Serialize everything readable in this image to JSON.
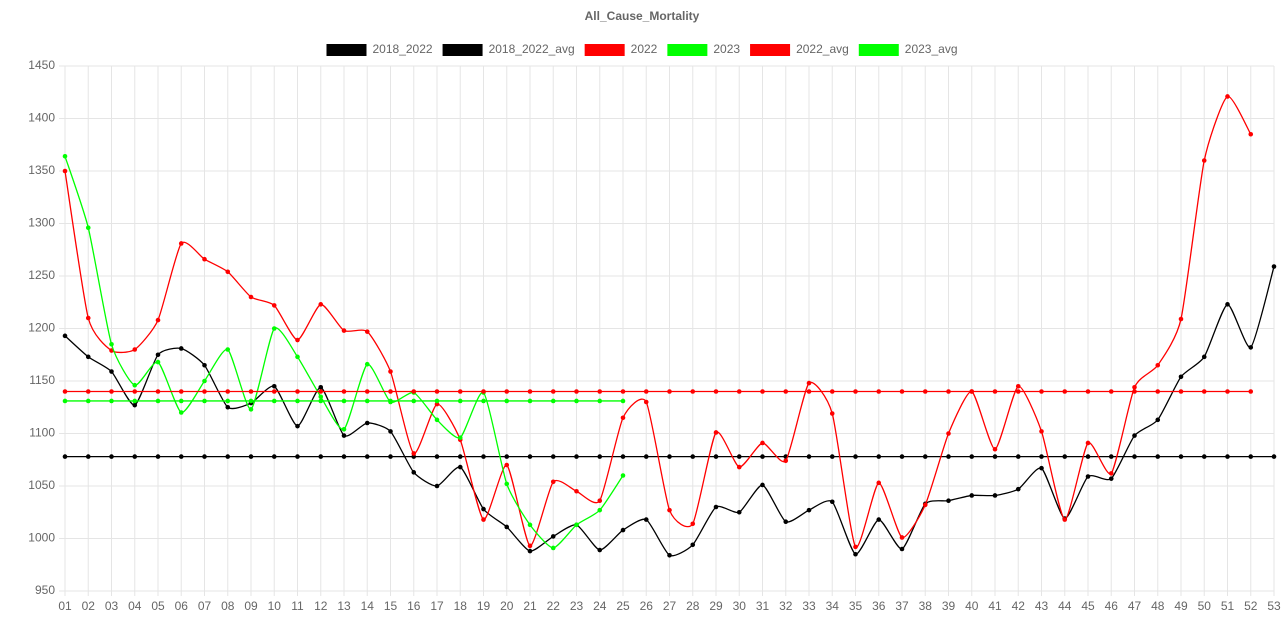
{
  "chart_data": {
    "type": "line",
    "title": "All_Cause_Mortality",
    "categories": [
      "01",
      "02",
      "03",
      "04",
      "05",
      "06",
      "07",
      "08",
      "09",
      "10",
      "11",
      "12",
      "13",
      "14",
      "15",
      "16",
      "17",
      "18",
      "19",
      "20",
      "21",
      "22",
      "23",
      "24",
      "25",
      "26",
      "27",
      "28",
      "29",
      "30",
      "31",
      "32",
      "33",
      "34",
      "35",
      "36",
      "37",
      "38",
      "39",
      "40",
      "41",
      "42",
      "43",
      "44",
      "45",
      "46",
      "47",
      "48",
      "49",
      "50",
      "51",
      "52",
      "53"
    ],
    "ylim": [
      950,
      1450
    ],
    "yticks": [
      950,
      1000,
      1050,
      1100,
      1150,
      1200,
      1250,
      1300,
      1350,
      1400,
      1450
    ],
    "grid": true,
    "series": [
      {
        "name": "2018_2022",
        "color": "#000000",
        "values": [
          1193,
          1173,
          1159,
          1127,
          1175,
          1181,
          1165,
          1125,
          1129,
          1145,
          1107,
          1144,
          1098,
          1110,
          1102,
          1063,
          1050,
          1068,
          1028,
          1011,
          988,
          1002,
          1013,
          989,
          1008,
          1018,
          984,
          994,
          1030,
          1025,
          1051,
          1016,
          1027,
          1035,
          985,
          1018,
          990,
          1033,
          1036,
          1041,
          1041,
          1047,
          1067,
          1019,
          1059,
          1057,
          1098,
          1113,
          1154,
          1173,
          1223,
          1182,
          1259
        ]
      },
      {
        "name": "2018_2022_avg",
        "color": "#000000",
        "values": [
          1078,
          1078,
          1078,
          1078,
          1078,
          1078,
          1078,
          1078,
          1078,
          1078,
          1078,
          1078,
          1078,
          1078,
          1078,
          1078,
          1078,
          1078,
          1078,
          1078,
          1078,
          1078,
          1078,
          1078,
          1078,
          1078,
          1078,
          1078,
          1078,
          1078,
          1078,
          1078,
          1078,
          1078,
          1078,
          1078,
          1078,
          1078,
          1078,
          1078,
          1078,
          1078,
          1078,
          1078,
          1078,
          1078,
          1078,
          1078,
          1078,
          1078,
          1078,
          1078,
          1078
        ]
      },
      {
        "name": "2022",
        "color": "#ff0000",
        "values": [
          1350,
          1210,
          1179,
          1180,
          1208,
          1281,
          1266,
          1254,
          1230,
          1222,
          1189,
          1223,
          1198,
          1197,
          1159,
          1081,
          1128,
          1094,
          1018,
          1070,
          993,
          1054,
          1045,
          1036,
          1115,
          1130,
          1027,
          1014,
          1101,
          1068,
          1091,
          1074,
          1148,
          1119,
          992,
          1053,
          1001,
          1032,
          1100,
          1140,
          1085,
          1145,
          1102,
          1018,
          1091,
          1062,
          1144,
          1165,
          1209,
          1360,
          1421,
          1385,
          null
        ]
      },
      {
        "name": "2023",
        "color": "#00ff00",
        "values": [
          1364,
          1296,
          1185,
          1146,
          1168,
          1120,
          1150,
          1180,
          1123,
          1200,
          1173,
          1135,
          1104,
          1166,
          1130,
          1139,
          1113,
          1096,
          1139,
          1052,
          1013,
          991,
          1013,
          1027,
          1060,
          null,
          null,
          null,
          null,
          null,
          null,
          null,
          null,
          null,
          null,
          null,
          null,
          null,
          null,
          null,
          null,
          null,
          null,
          null,
          null,
          null,
          null,
          null,
          null,
          null,
          null,
          null,
          null
        ]
      },
      {
        "name": "2022_avg",
        "color": "#ff0000",
        "values": [
          1140,
          1140,
          1140,
          1140,
          1140,
          1140,
          1140,
          1140,
          1140,
          1140,
          1140,
          1140,
          1140,
          1140,
          1140,
          1140,
          1140,
          1140,
          1140,
          1140,
          1140,
          1140,
          1140,
          1140,
          1140,
          1140,
          1140,
          1140,
          1140,
          1140,
          1140,
          1140,
          1140,
          1140,
          1140,
          1140,
          1140,
          1140,
          1140,
          1140,
          1140,
          1140,
          1140,
          1140,
          1140,
          1140,
          1140,
          1140,
          1140,
          1140,
          1140,
          1140,
          null
        ]
      },
      {
        "name": "2023_avg",
        "color": "#00ff00",
        "values": [
          1131,
          1131,
          1131,
          1131,
          1131,
          1131,
          1131,
          1131,
          1131,
          1131,
          1131,
          1131,
          1131,
          1131,
          1131,
          1131,
          1131,
          1131,
          1131,
          1131,
          1131,
          1131,
          1131,
          1131,
          1131,
          null,
          null,
          null,
          null,
          null,
          null,
          null,
          null,
          null,
          null,
          null,
          null,
          null,
          null,
          null,
          null,
          null,
          null,
          null,
          null,
          null,
          null,
          null,
          null,
          null,
          null,
          null,
          null
        ]
      }
    ]
  }
}
